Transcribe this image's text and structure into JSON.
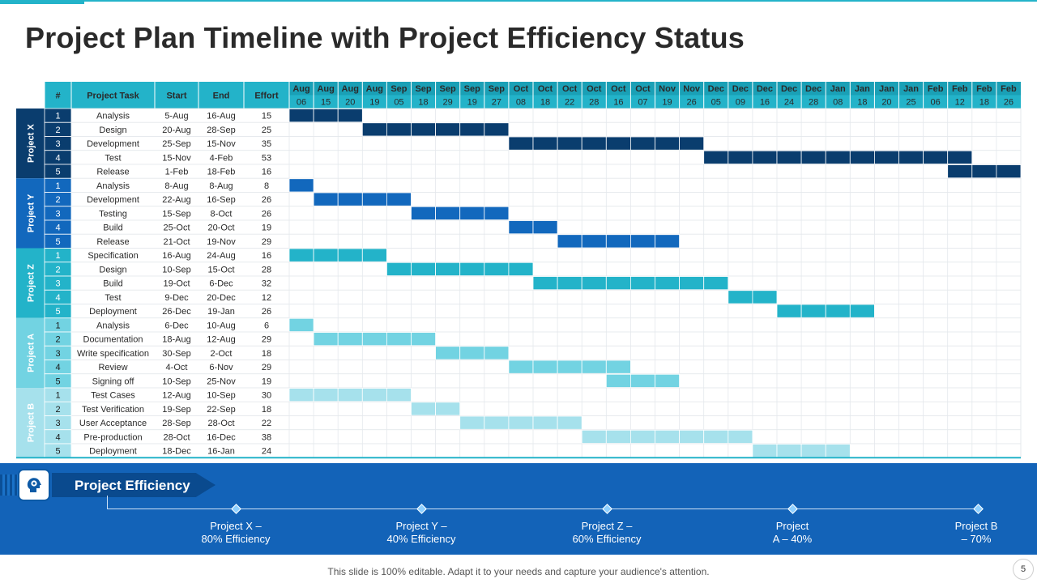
{
  "title": "Project Plan Timeline with Project Efficiency Status",
  "table_headers": {
    "num": "#",
    "task": "Project Task",
    "start": "Start",
    "end": "End",
    "effort": "Effort"
  },
  "timeline_columns": [
    {
      "month": "Aug",
      "day": "06"
    },
    {
      "month": "Aug",
      "day": "15"
    },
    {
      "month": "Aug",
      "day": "20"
    },
    {
      "month": "Aug",
      "day": "19"
    },
    {
      "month": "Sep",
      "day": "05"
    },
    {
      "month": "Sep",
      "day": "18"
    },
    {
      "month": "Sep",
      "day": "29"
    },
    {
      "month": "Sep",
      "day": "19"
    },
    {
      "month": "Sep",
      "day": "27"
    },
    {
      "month": "Oct",
      "day": "08"
    },
    {
      "month": "Oct",
      "day": "18"
    },
    {
      "month": "Oct",
      "day": "22"
    },
    {
      "month": "Oct",
      "day": "28"
    },
    {
      "month": "Oct",
      "day": "16"
    },
    {
      "month": "Oct",
      "day": "07"
    },
    {
      "month": "Nov",
      "day": "19"
    },
    {
      "month": "Nov",
      "day": "26"
    },
    {
      "month": "Dec",
      "day": "05"
    },
    {
      "month": "Dec",
      "day": "09"
    },
    {
      "month": "Dec",
      "day": "16"
    },
    {
      "month": "Dec",
      "day": "24"
    },
    {
      "month": "Dec",
      "day": "28"
    },
    {
      "month": "Jan",
      "day": "08"
    },
    {
      "month": "Jan",
      "day": "18"
    },
    {
      "month": "Jan",
      "day": "20"
    },
    {
      "month": "Jan",
      "day": "25"
    },
    {
      "month": "Feb",
      "day": "06"
    },
    {
      "month": "Feb",
      "day": "12"
    },
    {
      "month": "Feb",
      "day": "18"
    },
    {
      "month": "Feb",
      "day": "26"
    }
  ],
  "projects": [
    {
      "name": "Project X",
      "color": "#0a3d6e",
      "tasks": [
        {
          "num": "1",
          "task": "Analysis",
          "start": "5-Aug",
          "end": "16-Aug",
          "effort": "15",
          "bar_start": 0,
          "bar_len": 3
        },
        {
          "num": "2",
          "task": "Design",
          "start": "20-Aug",
          "end": "28-Sep",
          "effort": "25",
          "bar_start": 3,
          "bar_len": 6
        },
        {
          "num": "3",
          "task": "Development",
          "start": "25-Sep",
          "end": "15-Nov",
          "effort": "35",
          "bar_start": 9,
          "bar_len": 8
        },
        {
          "num": "4",
          "task": "Test",
          "start": "15-Nov",
          "end": "4-Feb",
          "effort": "53",
          "bar_start": 17,
          "bar_len": 11
        },
        {
          "num": "5",
          "task": "Release",
          "start": "1-Feb",
          "end": "18-Feb",
          "effort": "16",
          "bar_start": 27,
          "bar_len": 3
        }
      ]
    },
    {
      "name": "Project Y",
      "color": "#1268bd",
      "tasks": [
        {
          "num": "1",
          "task": "Analysis",
          "start": "8-Aug",
          "end": "8-Aug",
          "effort": "8",
          "bar_start": 0,
          "bar_len": 1
        },
        {
          "num": "2",
          "task": "Development",
          "start": "22-Aug",
          "end": "16-Sep",
          "effort": "26",
          "bar_start": 1,
          "bar_len": 4
        },
        {
          "num": "3",
          "task": "Testing",
          "start": "15-Sep",
          "end": "8-Oct",
          "effort": "26",
          "bar_start": 5,
          "bar_len": 4
        },
        {
          "num": "4",
          "task": "Build",
          "start": "25-Oct",
          "end": "20-Oct",
          "effort": "19",
          "bar_start": 9,
          "bar_len": 2
        },
        {
          "num": "5",
          "task": "Release",
          "start": "21-Oct",
          "end": "19-Nov",
          "effort": "29",
          "bar_start": 11,
          "bar_len": 5
        }
      ]
    },
    {
      "name": "Project Z",
      "color": "#23b3c9",
      "tasks": [
        {
          "num": "1",
          "task": "Specification",
          "start": "16-Aug",
          "end": "24-Aug",
          "effort": "16",
          "bar_start": 0,
          "bar_len": 4
        },
        {
          "num": "2",
          "task": "Design",
          "start": "10-Sep",
          "end": "15-Oct",
          "effort": "28",
          "bar_start": 4,
          "bar_len": 6
        },
        {
          "num": "3",
          "task": "Build",
          "start": "19-Oct",
          "end": "6-Dec",
          "effort": "32",
          "bar_start": 10,
          "bar_len": 8
        },
        {
          "num": "4",
          "task": "Test",
          "start": "9-Dec",
          "end": "20-Dec",
          "effort": "12",
          "bar_start": 18,
          "bar_len": 2
        },
        {
          "num": "5",
          "task": "Deployment",
          "start": "26-Dec",
          "end": "19-Jan",
          "effort": "26",
          "bar_start": 20,
          "bar_len": 4
        }
      ]
    },
    {
      "name": "Project A",
      "color": "#72d3e2",
      "tasks": [
        {
          "num": "1",
          "task": "Analysis",
          "start": "6-Dec",
          "end": "10-Aug",
          "effort": "6",
          "bar_start": 0,
          "bar_len": 1
        },
        {
          "num": "2",
          "task": "Documentation",
          "start": "18-Aug",
          "end": "12-Aug",
          "effort": "29",
          "bar_start": 1,
          "bar_len": 5
        },
        {
          "num": "3",
          "task": "Write specification",
          "start": "30-Sep",
          "end": "2-Oct",
          "effort": "18",
          "bar_start": 6,
          "bar_len": 3
        },
        {
          "num": "4",
          "task": "Review",
          "start": "4-Oct",
          "end": "6-Nov",
          "effort": "29",
          "bar_start": 9,
          "bar_len": 5
        },
        {
          "num": "5",
          "task": "Signing off",
          "start": "10-Sep",
          "end": "25-Nov",
          "effort": "19",
          "bar_start": 13,
          "bar_len": 3
        }
      ]
    },
    {
      "name": "Project B",
      "color": "#a6e1ec",
      "tasks": [
        {
          "num": "1",
          "task": "Test Cases",
          "start": "12-Aug",
          "end": "10-Sep",
          "effort": "30",
          "bar_start": 0,
          "bar_len": 5
        },
        {
          "num": "2",
          "task": "Test Verification",
          "start": "19-Sep",
          "end": "22-Sep",
          "effort": "18",
          "bar_start": 5,
          "bar_len": 2
        },
        {
          "num": "3",
          "task": "User Acceptance",
          "start": "28-Sep",
          "end": "28-Oct",
          "effort": "22",
          "bar_start": 7,
          "bar_len": 5
        },
        {
          "num": "4",
          "task": "Pre-production",
          "start": "28-Oct",
          "end": "16-Dec",
          "effort": "38",
          "bar_start": 12,
          "bar_len": 7
        },
        {
          "num": "5",
          "task": "Deployment",
          "start": "18-Dec",
          "end": "16-Jan",
          "effort": "24",
          "bar_start": 19,
          "bar_len": 4
        }
      ]
    }
  ],
  "efficiency": {
    "label": "Project Efficiency",
    "icon": "head-gear-icon",
    "items": [
      {
        "line1": "Project X –",
        "line2": "80% Efficiency",
        "value": 80
      },
      {
        "line1": "Project Y –",
        "line2": "40% Efficiency",
        "value": 40
      },
      {
        "line1": "Project Z –",
        "line2": "60% Efficiency",
        "value": 60
      },
      {
        "line1": "Project",
        "line2": "A – 40%",
        "value": 40
      },
      {
        "line1": "Project B",
        "line2": "– 70%",
        "value": 70
      }
    ]
  },
  "caption": "This slide is 100% editable. Adapt it to your needs and capture your audience's attention.",
  "page_number": "5",
  "colors": {
    "header": "#23b3c9",
    "accent": "#1363b8",
    "dark": "#0a3d6e"
  }
}
